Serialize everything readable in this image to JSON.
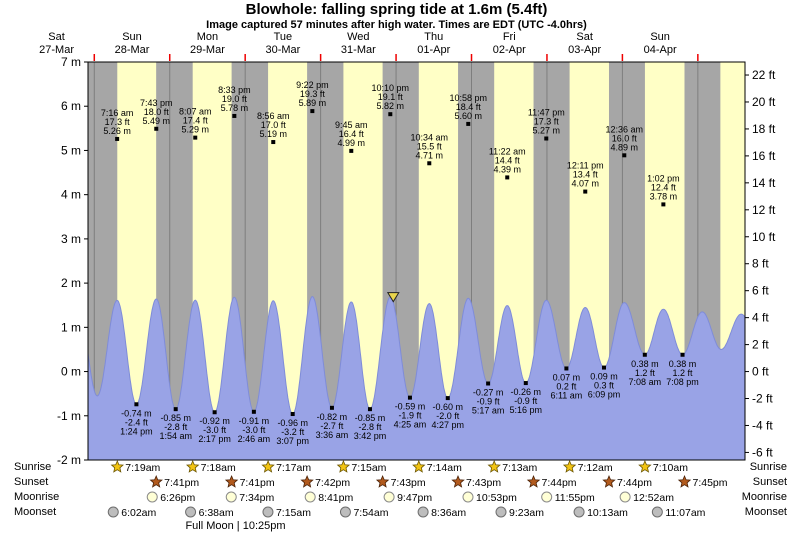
{
  "title": "Blowhole: falling spring tide at 1.6m (5.4ft)",
  "subtitle": "Image captured 57 minutes after high water. Times are EDT (UTC -4.0hrs)",
  "side_labels": {
    "sunrise": "Sunrise",
    "sunset": "Sunset",
    "moonrise": "Moonrise",
    "moonset": "Moonset"
  },
  "full_moon_note": "Full Moon | 10:25pm",
  "colors": {
    "day_band": "#ffffc6",
    "night_band": "#a6a6a6",
    "tide_fill": "#99a3e6",
    "tide_stroke": "#7f8cd8",
    "day_label": "#ee0000",
    "sunrise_star": "#f2c413",
    "sunset_star": "#b25a1d",
    "moonrise_circle": "#ffffd6",
    "moonset_circle": "#bdbdbd",
    "marker_fill": "#e8d44d"
  },
  "chart_data": {
    "type": "area",
    "title": "Blowhole tide height over time",
    "y_axis_left": {
      "unit": "m",
      "labels": [
        "7 m",
        "6 m",
        "5 m",
        "4 m",
        "3 m",
        "2 m",
        "1 m",
        "0 m",
        "-1 m",
        "-2 m"
      ],
      "values": [
        7,
        6,
        5,
        4,
        3,
        2,
        1,
        0,
        -1,
        -2
      ]
    },
    "y_axis_right": {
      "unit": "ft",
      "labels": [
        "22 ft",
        "20 ft",
        "18 ft",
        "16 ft",
        "14 ft",
        "12 ft",
        "10 ft",
        "8 ft",
        "6 ft",
        "4 ft",
        "2 ft",
        "0 ft",
        "-2 ft",
        "-4 ft",
        "-6 ft"
      ],
      "values": [
        22,
        20,
        18,
        16,
        14,
        12,
        10,
        8,
        6,
        4,
        2,
        0,
        -2,
        -4,
        -6
      ]
    },
    "days": [
      {
        "name": "Sat",
        "date": "27-Mar"
      },
      {
        "name": "Sun",
        "date": "28-Mar"
      },
      {
        "name": "Mon",
        "date": "29-Mar"
      },
      {
        "name": "Tue",
        "date": "30-Mar"
      },
      {
        "name": "Wed",
        "date": "31-Mar"
      },
      {
        "name": "Thu",
        "date": "01-Apr"
      },
      {
        "name": "Fri",
        "date": "02-Apr"
      },
      {
        "name": "Sat",
        "date": "03-Apr"
      },
      {
        "name": "Sun",
        "date": "04-Apr"
      }
    ],
    "high_tides": [
      {
        "day": 1,
        "time": "7:16 am",
        "ft": "17.3 ft",
        "m": "5.26 m"
      },
      {
        "day": 1,
        "time": "7:43 pm",
        "ft": "18.0 ft",
        "m": "5.49 m"
      },
      {
        "day": 2,
        "time": "8:07 am",
        "ft": "17.4 ft",
        "m": "5.29 m"
      },
      {
        "day": 2,
        "time": "8:33 pm",
        "ft": "19.0 ft",
        "m": "5.78 m"
      },
      {
        "day": 3,
        "time": "8:56 am",
        "ft": "17.0 ft",
        "m": "5.19 m"
      },
      {
        "day": 3,
        "time": "9:22 pm",
        "ft": "19.3 ft",
        "m": "5.89 m"
      },
      {
        "day": 4,
        "time": "9:45 am",
        "ft": "16.4 ft",
        "m": "4.99 m"
      },
      {
        "day": 4,
        "time": "10:10 pm",
        "ft": "19.1 ft",
        "m": "5.82 m"
      },
      {
        "day": 5,
        "time": "10:34 am",
        "ft": "15.5 ft",
        "m": "4.71 m"
      },
      {
        "day": 5,
        "time": "10:58 pm",
        "ft": "18.4 ft",
        "m": "5.60 m"
      },
      {
        "day": 6,
        "time": "11:22 am",
        "ft": "14.4 ft",
        "m": "4.39 m"
      },
      {
        "day": 6,
        "time": "11:47 pm",
        "ft": "17.3 ft",
        "m": "5.27 m"
      },
      {
        "day": 7,
        "time": "12:11 pm",
        "ft": "13.4 ft",
        "m": "4.07 m"
      },
      {
        "day": 8,
        "time": "12:36 am",
        "ft": "16.0 ft",
        "m": "4.89 m"
      },
      {
        "day": 8,
        "time": "1:02 pm",
        "ft": "12.4 ft",
        "m": "3.78 m"
      }
    ],
    "low_tides": [
      {
        "day": 1,
        "time": "1:24 pm",
        "m": "-0.74 m",
        "ft": "-2.4 ft"
      },
      {
        "day": 2,
        "time": "1:54 am",
        "m": "-0.85 m",
        "ft": "-2.8 ft"
      },
      {
        "day": 2,
        "time": "2:17 pm",
        "m": "-0.92 m",
        "ft": "-3.0 ft"
      },
      {
        "day": 3,
        "time": "2:46 am",
        "m": "-0.91 m",
        "ft": "-3.0 ft"
      },
      {
        "day": 3,
        "time": "3:07 pm",
        "m": "-0.96 m",
        "ft": "-3.2 ft"
      },
      {
        "day": 4,
        "time": "3:36 am",
        "m": "-0.82 m",
        "ft": "-2.7 ft"
      },
      {
        "day": 4,
        "time": "3:42 pm",
        "m": "-0.85 m",
        "ft": "-2.8 ft"
      },
      {
        "day": 5,
        "time": "4:25 am",
        "m": "-0.59 m",
        "ft": "-1.9 ft"
      },
      {
        "day": 5,
        "time": "4:27 pm",
        "m": "-0.60 m",
        "ft": "-2.0 ft"
      },
      {
        "day": 6,
        "time": "5:17 am",
        "m": "-0.27 m",
        "ft": "-0.9 ft"
      },
      {
        "day": 6,
        "time": "5:16 pm",
        "m": "-0.26 m",
        "ft": "-0.9 ft"
      },
      {
        "day": 7,
        "time": "6:11 am",
        "m": "0.07 m",
        "ft": "0.2 ft"
      },
      {
        "day": 7,
        "time": "6:09 pm",
        "m": "0.09 m",
        "ft": "0.3 ft"
      },
      {
        "day": 8,
        "time": "7:08 am",
        "m": "0.38 m",
        "ft": "1.2 ft"
      },
      {
        "day": 8,
        "time": "7:08 pm",
        "m": "0.38 m",
        "ft": "1.2 ft"
      }
    ],
    "sunrise": [
      {
        "day": 1,
        "time": "7:19am"
      },
      {
        "day": 2,
        "time": "7:18am"
      },
      {
        "day": 3,
        "time": "7:17am"
      },
      {
        "day": 4,
        "time": "7:15am"
      },
      {
        "day": 5,
        "time": "7:14am"
      },
      {
        "day": 6,
        "time": "7:13am"
      },
      {
        "day": 7,
        "time": "7:12am"
      },
      {
        "day": 8,
        "time": "7:10am"
      }
    ],
    "sunset": [
      {
        "day": 1,
        "time": "7:41pm"
      },
      {
        "day": 2,
        "time": "7:41pm"
      },
      {
        "day": 3,
        "time": "7:42pm"
      },
      {
        "day": 4,
        "time": "7:43pm"
      },
      {
        "day": 5,
        "time": "7:43pm"
      },
      {
        "day": 6,
        "time": "7:44pm"
      },
      {
        "day": 7,
        "time": "7:44pm"
      },
      {
        "day": 8,
        "time": "7:45pm"
      }
    ],
    "moonrise": [
      {
        "day": 1,
        "time": "6:26pm"
      },
      {
        "day": 2,
        "time": "7:34pm"
      },
      {
        "day": 3,
        "time": "8:41pm"
      },
      {
        "day": 4,
        "time": "9:47pm"
      },
      {
        "day": 5,
        "time": "10:53pm"
      },
      {
        "day": 6,
        "time": "11:55pm"
      },
      {
        "day": 8,
        "time": "12:52am"
      }
    ],
    "moonset": [
      {
        "day": 1,
        "time": "6:02am"
      },
      {
        "day": 2,
        "time": "6:38am"
      },
      {
        "day": 3,
        "time": "7:15am"
      },
      {
        "day": 4,
        "time": "7:54am"
      },
      {
        "day": 5,
        "time": "8:36am"
      },
      {
        "day": 6,
        "time": "9:23am"
      },
      {
        "day": 7,
        "time": "10:13am"
      },
      {
        "day": 8,
        "time": "11:07am"
      }
    ],
    "marker": {
      "minutes_after_high": 57,
      "high_index": 7
    }
  }
}
